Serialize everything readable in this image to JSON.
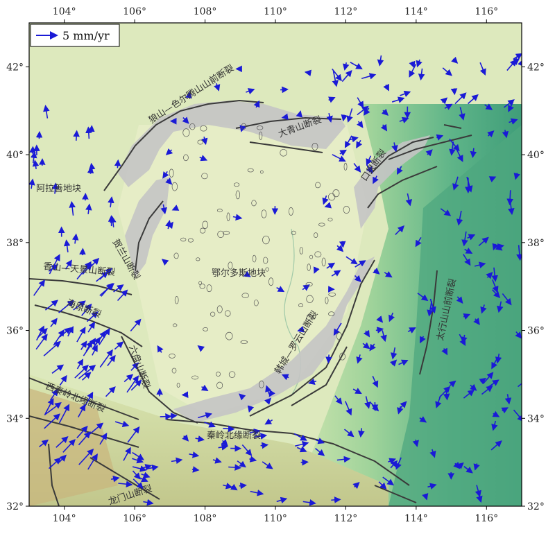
{
  "map": {
    "lon_range": [
      103,
      117
    ],
    "lat_range": [
      32,
      43
    ],
    "lon_ticks": [
      104,
      106,
      108,
      110,
      112,
      114,
      116
    ],
    "lat_ticks": [
      32,
      34,
      36,
      38,
      40,
      42
    ],
    "lon_tick_labels": [
      "104°",
      "106°",
      "108°",
      "110°",
      "112°",
      "114°",
      "116°"
    ],
    "lat_tick_labels": [
      "32°",
      "34°",
      "36°",
      "38°",
      "40°",
      "42°"
    ],
    "legend_label": "5 mm/yr",
    "colors": {
      "plain": "#dfe9bf",
      "lowland": "#cfe2a6",
      "highland": "#5fae7f",
      "mountain": "#b8b27a",
      "graben": "#bdbdbd",
      "fault": "#333333",
      "vector": "#1a1ad6"
    },
    "labels": [
      {
        "key": "yinshan",
        "text": "狼山—色尔腾山山前断裂"
      },
      {
        "key": "daqingshan",
        "text": "大青山断裂"
      },
      {
        "key": "kouquan",
        "text": "口泉断裂"
      },
      {
        "key": "alashan",
        "text": "阿拉善地块"
      },
      {
        "key": "helanshan",
        "text": "贺兰山断裂"
      },
      {
        "key": "ordos",
        "text": "鄂尔多斯地块"
      },
      {
        "key": "xiangshan",
        "text": "香山—天景山断裂"
      },
      {
        "key": "haiyuan",
        "text": "海原断裂"
      },
      {
        "key": "liupanshan",
        "text": "六盘山断裂"
      },
      {
        "key": "xiqinling",
        "text": "西秦岭北缘断裂"
      },
      {
        "key": "qinling",
        "text": "秦岭北缘断裂"
      },
      {
        "key": "hancheng",
        "text": "韩城—罗云山断裂"
      },
      {
        "key": "taihang",
        "text": "太行山山前断裂"
      },
      {
        "key": "longmenshan",
        "text": "龙门山断裂"
      }
    ]
  }
}
